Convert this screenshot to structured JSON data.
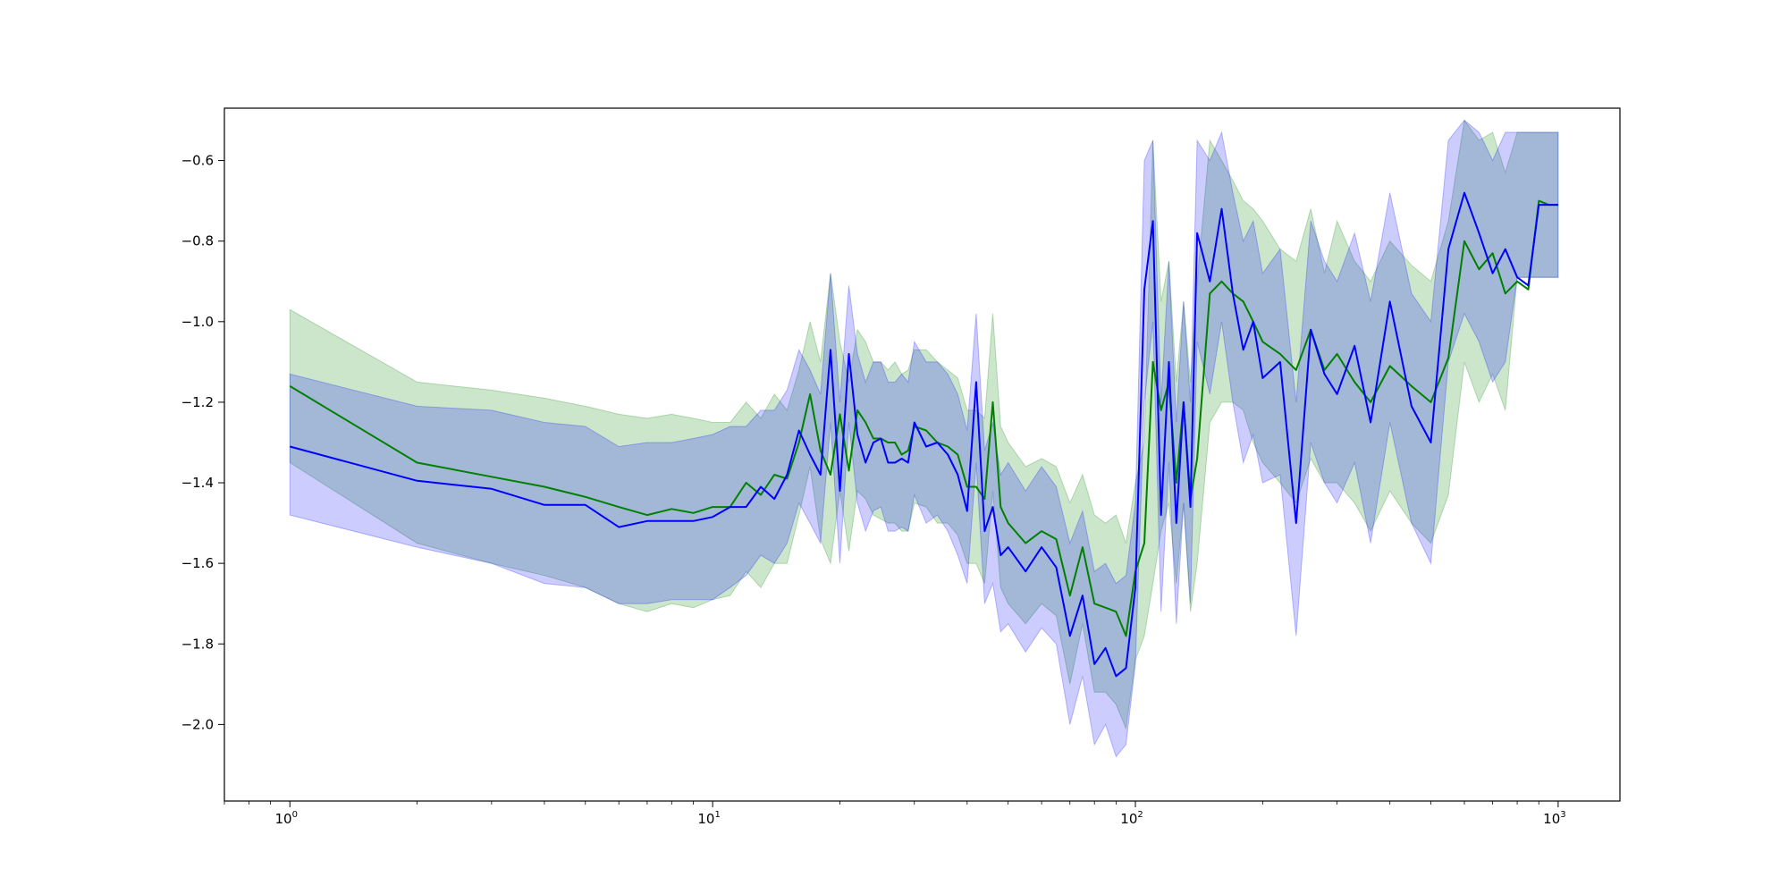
{
  "chart_data": {
    "type": "line",
    "title": "",
    "xlabel": "",
    "ylabel": "",
    "xscale": "log",
    "xlim": [
      0.7,
      1400
    ],
    "ylim": [
      -2.19,
      -0.47
    ],
    "grid": false,
    "legend": "none",
    "x_ticks": [
      {
        "base": "10",
        "exp": "0",
        "value": 1
      },
      {
        "base": "10",
        "exp": "1",
        "value": 10
      },
      {
        "base": "10",
        "exp": "2",
        "value": 100
      },
      {
        "base": "10",
        "exp": "3",
        "value": 1000
      }
    ],
    "y_ticks": [
      {
        "label": "−0.6",
        "value": -0.6
      },
      {
        "label": "−0.8",
        "value": -0.8
      },
      {
        "label": "−1.0",
        "value": -1.0
      },
      {
        "label": "−1.2",
        "value": -1.2
      },
      {
        "label": "−1.4",
        "value": -1.4
      },
      {
        "label": "−1.6",
        "value": -1.6
      },
      {
        "label": "−1.8",
        "value": -1.8
      },
      {
        "label": "−2.0",
        "value": -2.0
      }
    ],
    "series": [
      {
        "color": "#008000",
        "band_color": "#008000",
        "x": [
          1,
          2,
          3,
          4,
          5,
          6,
          7,
          8,
          9,
          10,
          11,
          12,
          13,
          14,
          15,
          16,
          17,
          18,
          19,
          20,
          21,
          22,
          23,
          24,
          25,
          26,
          27,
          28,
          29,
          30,
          32,
          34,
          36,
          38,
          40,
          42,
          44,
          46,
          48,
          50,
          55,
          60,
          65,
          70,
          75,
          80,
          85,
          90,
          95,
          100,
          105,
          110,
          115,
          120,
          125,
          130,
          135,
          140,
          150,
          160,
          170,
          180,
          190,
          200,
          220,
          240,
          260,
          280,
          300,
          330,
          360,
          400,
          450,
          500,
          550,
          600,
          650,
          700,
          750,
          800,
          850,
          900,
          950,
          1000
        ],
        "y": [
          -1.16,
          -1.35,
          -1.385,
          -1.41,
          -1.435,
          -1.46,
          -1.48,
          -1.465,
          -1.475,
          -1.46,
          -1.46,
          -1.4,
          -1.43,
          -1.38,
          -1.39,
          -1.3,
          -1.18,
          -1.32,
          -1.38,
          -1.23,
          -1.37,
          -1.22,
          -1.25,
          -1.29,
          -1.29,
          -1.3,
          -1.3,
          -1.33,
          -1.32,
          -1.26,
          -1.27,
          -1.3,
          -1.31,
          -1.33,
          -1.41,
          -1.41,
          -1.44,
          -1.2,
          -1.46,
          -1.5,
          -1.55,
          -1.52,
          -1.54,
          -1.68,
          -1.56,
          -1.7,
          -1.71,
          -1.72,
          -1.78,
          -1.62,
          -1.55,
          -1.1,
          -1.22,
          -1.15,
          -1.4,
          -1.2,
          -1.44,
          -1.34,
          -0.93,
          -0.9,
          -0.93,
          -0.95,
          -1.0,
          -1.05,
          -1.08,
          -1.12,
          -1.02,
          -1.12,
          -1.08,
          -1.15,
          -1.2,
          -1.11,
          -1.16,
          -1.2,
          -1.09,
          -0.8,
          -0.87,
          -0.83,
          -0.93,
          -0.9,
          -0.92,
          -0.7,
          -0.71,
          -0.71
        ],
        "upper": [
          -0.97,
          -1.15,
          -1.17,
          -1.19,
          -1.21,
          -1.23,
          -1.24,
          -1.23,
          -1.24,
          -1.25,
          -1.25,
          -1.2,
          -1.24,
          -1.18,
          -1.22,
          -1.12,
          -1.0,
          -1.1,
          -0.88,
          -1.05,
          -1.15,
          -1.02,
          -1.05,
          -1.1,
          -1.1,
          -1.12,
          -1.1,
          -1.13,
          -1.12,
          -1.07,
          -1.07,
          -1.1,
          -1.12,
          -1.14,
          -1.22,
          -1.22,
          -1.24,
          -0.98,
          -1.26,
          -1.3,
          -1.36,
          -1.34,
          -1.36,
          -1.45,
          -1.38,
          -1.48,
          -1.5,
          -1.48,
          -1.55,
          -1.4,
          -1.3,
          -0.55,
          -0.95,
          -0.85,
          -1.15,
          -0.95,
          -1.15,
          -0.9,
          -0.55,
          -0.6,
          -0.65,
          -0.7,
          -0.72,
          -0.75,
          -0.82,
          -0.85,
          -0.72,
          -0.88,
          -0.75,
          -0.85,
          -0.9,
          -0.8,
          -0.86,
          -0.9,
          -0.75,
          -0.5,
          -0.55,
          -0.53,
          -0.63,
          -0.53,
          -0.53,
          -0.53,
          -0.53,
          -0.53
        ],
        "lower": [
          -1.35,
          -1.55,
          -1.6,
          -1.63,
          -1.66,
          -1.7,
          -1.72,
          -1.7,
          -1.71,
          -1.69,
          -1.68,
          -1.62,
          -1.66,
          -1.6,
          -1.6,
          -1.48,
          -1.36,
          -1.54,
          -1.6,
          -1.42,
          -1.57,
          -1.42,
          -1.44,
          -1.48,
          -1.49,
          -1.5,
          -1.5,
          -1.52,
          -1.52,
          -1.45,
          -1.46,
          -1.5,
          -1.5,
          -1.53,
          -1.6,
          -1.6,
          -1.65,
          -1.42,
          -1.66,
          -1.7,
          -1.75,
          -1.7,
          -1.73,
          -1.9,
          -1.75,
          -1.92,
          -1.92,
          -1.95,
          -2.01,
          -1.84,
          -1.78,
          -1.65,
          -1.52,
          -1.45,
          -1.65,
          -1.45,
          -1.72,
          -1.6,
          -1.25,
          -1.2,
          -1.2,
          -1.22,
          -1.3,
          -1.35,
          -1.4,
          -1.45,
          -1.34,
          -1.4,
          -1.4,
          -1.45,
          -1.52,
          -1.42,
          -1.5,
          -1.55,
          -1.43,
          -1.1,
          -1.2,
          -1.13,
          -1.22,
          -0.89,
          -0.89,
          -0.89,
          -0.89,
          -0.89
        ]
      },
      {
        "color": "#0000ff",
        "band_color": "#0000ff",
        "x": [
          1,
          2,
          3,
          4,
          5,
          6,
          7,
          8,
          9,
          10,
          11,
          12,
          13,
          14,
          15,
          16,
          17,
          18,
          19,
          20,
          21,
          22,
          23,
          24,
          25,
          26,
          27,
          28,
          29,
          30,
          32,
          34,
          36,
          38,
          40,
          42,
          44,
          46,
          48,
          50,
          55,
          60,
          65,
          70,
          75,
          80,
          85,
          90,
          95,
          100,
          105,
          110,
          115,
          120,
          125,
          130,
          135,
          140,
          150,
          160,
          170,
          180,
          190,
          200,
          220,
          240,
          260,
          280,
          300,
          330,
          360,
          400,
          450,
          500,
          550,
          600,
          650,
          700,
          750,
          800,
          850,
          900,
          950,
          1000
        ],
        "y": [
          -1.31,
          -1.395,
          -1.415,
          -1.455,
          -1.455,
          -1.51,
          -1.495,
          -1.495,
          -1.495,
          -1.485,
          -1.46,
          -1.46,
          -1.41,
          -1.44,
          -1.38,
          -1.27,
          -1.33,
          -1.38,
          -1.07,
          -1.42,
          -1.08,
          -1.28,
          -1.35,
          -1.3,
          -1.29,
          -1.35,
          -1.35,
          -1.34,
          -1.35,
          -1.25,
          -1.31,
          -1.3,
          -1.33,
          -1.38,
          -1.47,
          -1.15,
          -1.52,
          -1.46,
          -1.58,
          -1.56,
          -1.62,
          -1.56,
          -1.61,
          -1.78,
          -1.68,
          -1.85,
          -1.81,
          -1.88,
          -1.86,
          -1.66,
          -0.92,
          -0.75,
          -1.48,
          -1.1,
          -1.5,
          -1.2,
          -1.46,
          -0.78,
          -0.9,
          -0.72,
          -0.93,
          -1.07,
          -1.0,
          -1.14,
          -1.1,
          -1.5,
          -1.02,
          -1.13,
          -1.18,
          -1.06,
          -1.25,
          -0.95,
          -1.21,
          -1.3,
          -0.82,
          -0.68,
          -0.78,
          -0.88,
          -0.82,
          -0.89,
          -0.91,
          -0.71,
          -0.71,
          -0.71
        ],
        "upper": [
          -1.13,
          -1.21,
          -1.22,
          -1.25,
          -1.26,
          -1.31,
          -1.3,
          -1.3,
          -1.29,
          -1.28,
          -1.26,
          -1.26,
          -1.22,
          -1.22,
          -1.17,
          -1.07,
          -1.12,
          -1.18,
          -0.88,
          -1.2,
          -0.91,
          -1.08,
          -1.15,
          -1.1,
          -1.1,
          -1.15,
          -1.15,
          -1.13,
          -1.15,
          -1.05,
          -1.1,
          -1.1,
          -1.13,
          -1.18,
          -1.27,
          -0.98,
          -1.32,
          -1.25,
          -1.38,
          -1.35,
          -1.42,
          -1.36,
          -1.41,
          -1.55,
          -1.47,
          -1.62,
          -1.6,
          -1.65,
          -1.63,
          -1.45,
          -0.6,
          -0.55,
          -1.2,
          -0.85,
          -1.25,
          -0.95,
          -1.2,
          -0.55,
          -0.6,
          -0.53,
          -0.68,
          -0.8,
          -0.75,
          -0.88,
          -0.82,
          -1.2,
          -0.75,
          -0.85,
          -0.9,
          -0.78,
          -0.95,
          -0.68,
          -0.93,
          -1.0,
          -0.55,
          -0.5,
          -0.53,
          -0.6,
          -0.53,
          -0.53,
          -0.53,
          -0.53,
          -0.53,
          -0.53
        ],
        "lower": [
          -1.48,
          -1.56,
          -1.6,
          -1.65,
          -1.66,
          -1.7,
          -1.7,
          -1.69,
          -1.69,
          -1.69,
          -1.66,
          -1.63,
          -1.58,
          -1.6,
          -1.55,
          -1.45,
          -1.5,
          -1.55,
          -1.25,
          -1.6,
          -1.25,
          -1.45,
          -1.52,
          -1.47,
          -1.46,
          -1.52,
          -1.52,
          -1.51,
          -1.52,
          -1.43,
          -1.5,
          -1.48,
          -1.52,
          -1.58,
          -1.65,
          -1.35,
          -1.7,
          -1.65,
          -1.77,
          -1.75,
          -1.82,
          -1.76,
          -1.8,
          -2.0,
          -1.88,
          -2.05,
          -2.0,
          -2.08,
          -2.05,
          -1.85,
          -1.2,
          -1.0,
          -1.72,
          -1.35,
          -1.75,
          -1.45,
          -1.7,
          -1.05,
          -1.18,
          -1.0,
          -1.2,
          -1.35,
          -1.28,
          -1.4,
          -1.38,
          -1.78,
          -1.3,
          -1.4,
          -1.45,
          -1.35,
          -1.55,
          -1.25,
          -1.5,
          -1.6,
          -1.1,
          -0.98,
          -1.05,
          -1.15,
          -1.1,
          -0.89,
          -0.89,
          -0.89,
          -0.89,
          -0.89
        ]
      }
    ]
  }
}
